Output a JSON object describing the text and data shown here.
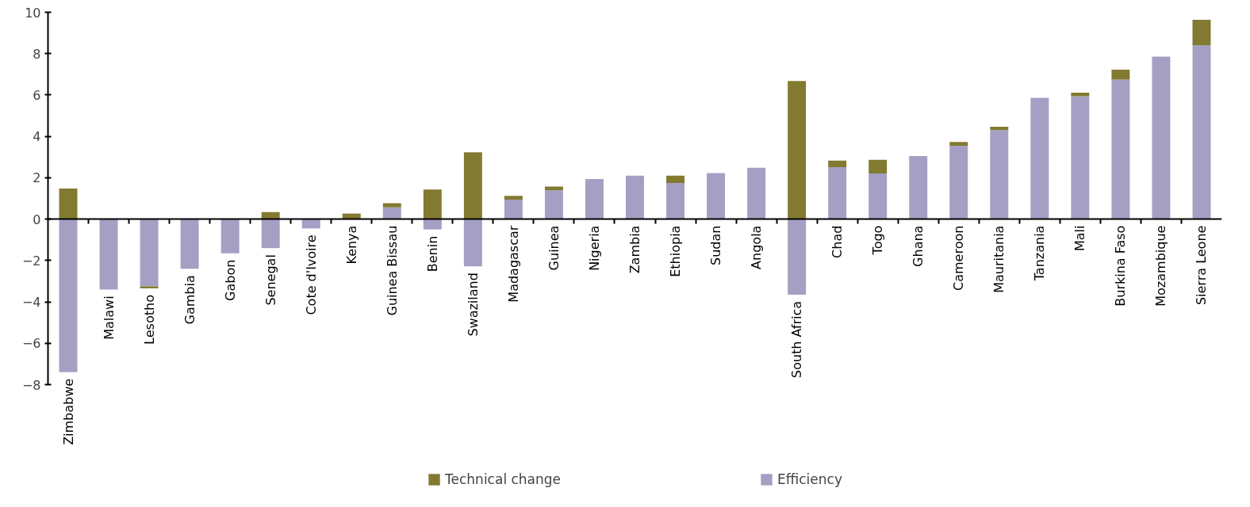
{
  "chart_data": {
    "type": "bar",
    "stacked": true,
    "categories": [
      "Zimbabwe",
      "Malawi",
      "Lesotho",
      "Gambia",
      "Gabon",
      "Senegal",
      "Cote d'Ivoire",
      "Kenya",
      "Guinea Bissau",
      "Benin",
      "Swaziland",
      "Madagascar",
      "Guinea",
      "Nigeria",
      "Zambia",
      "Ethiopia",
      "Sudan",
      "Angola",
      "South Africa",
      "Chad",
      "Togo",
      "Ghana",
      "Cameroon",
      "Mauritania",
      "Tanzania",
      "Mali",
      "Burkina Faso",
      "Mozambique",
      "Sierra Leone"
    ],
    "series": [
      {
        "name": "Efficiency",
        "color": "#a59fc4",
        "values": [
          -7.4,
          -3.4,
          -3.25,
          -2.4,
          -1.65,
          -1.4,
          -0.45,
          0,
          0.57,
          -0.5,
          -2.28,
          0.94,
          1.39,
          1.94,
          2.1,
          1.75,
          2.23,
          2.48,
          -3.65,
          2.51,
          2.21,
          3.05,
          3.55,
          4.3,
          5.86,
          5.94,
          6.74,
          7.86,
          8.4
        ]
      },
      {
        "name": "Technical change",
        "color": "#817a30",
        "values": [
          1.48,
          0,
          -0.1,
          0,
          0,
          0.34,
          0,
          0.27,
          0.2,
          1.43,
          3.23,
          0.18,
          0.18,
          0,
          0,
          0.35,
          0,
          0,
          6.68,
          0.32,
          0.66,
          0,
          0.18,
          0.17,
          0,
          0.17,
          0.48,
          0,
          1.24
        ]
      }
    ],
    "ylim": [
      -8,
      10
    ],
    "yticks": [
      -8,
      -6,
      -4,
      -2,
      0,
      2,
      4,
      6,
      8,
      10
    ],
    "grid": false,
    "legend": "bottom"
  }
}
